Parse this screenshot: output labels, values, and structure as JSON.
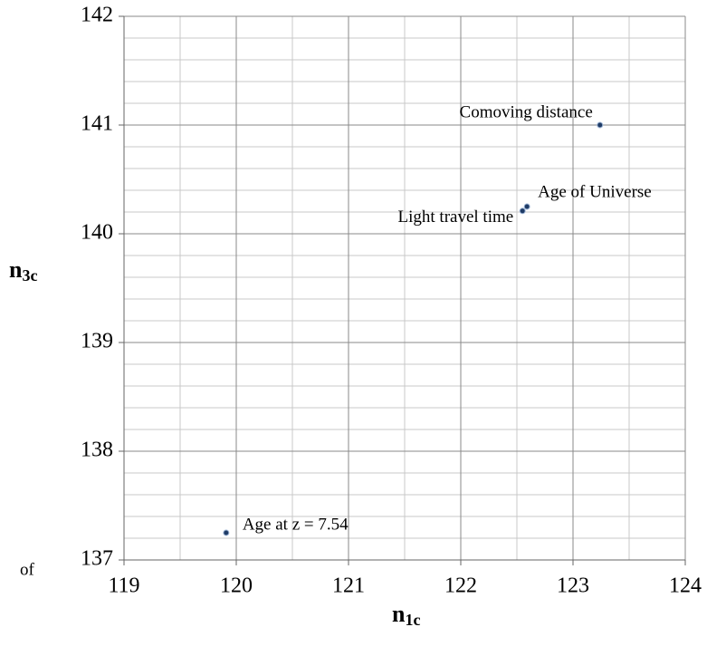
{
  "chart_data": {
    "type": "scatter",
    "x": [
      123.24,
      122.59,
      122.55,
      119.91
    ],
    "y": [
      141.0,
      140.25,
      140.21,
      137.25
    ],
    "point_labels": [
      "Comoving distance",
      "Age of Universe",
      "Light travel time",
      "Age at z = 7.54"
    ],
    "color": "#1f3b66",
    "xlim": [
      119,
      124
    ],
    "ylim": [
      137,
      142
    ],
    "xticks": [
      119,
      120,
      121,
      122,
      123,
      124
    ],
    "yticks": [
      137,
      138,
      139,
      140,
      141,
      142
    ],
    "grid": true,
    "minor_grid_divisions": {
      "x": 2,
      "y": 5
    },
    "xlabel": "n",
    "xlabel_sub": "1c",
    "ylabel": "n",
    "ylabel_sub": "3c",
    "annotation": "of"
  }
}
